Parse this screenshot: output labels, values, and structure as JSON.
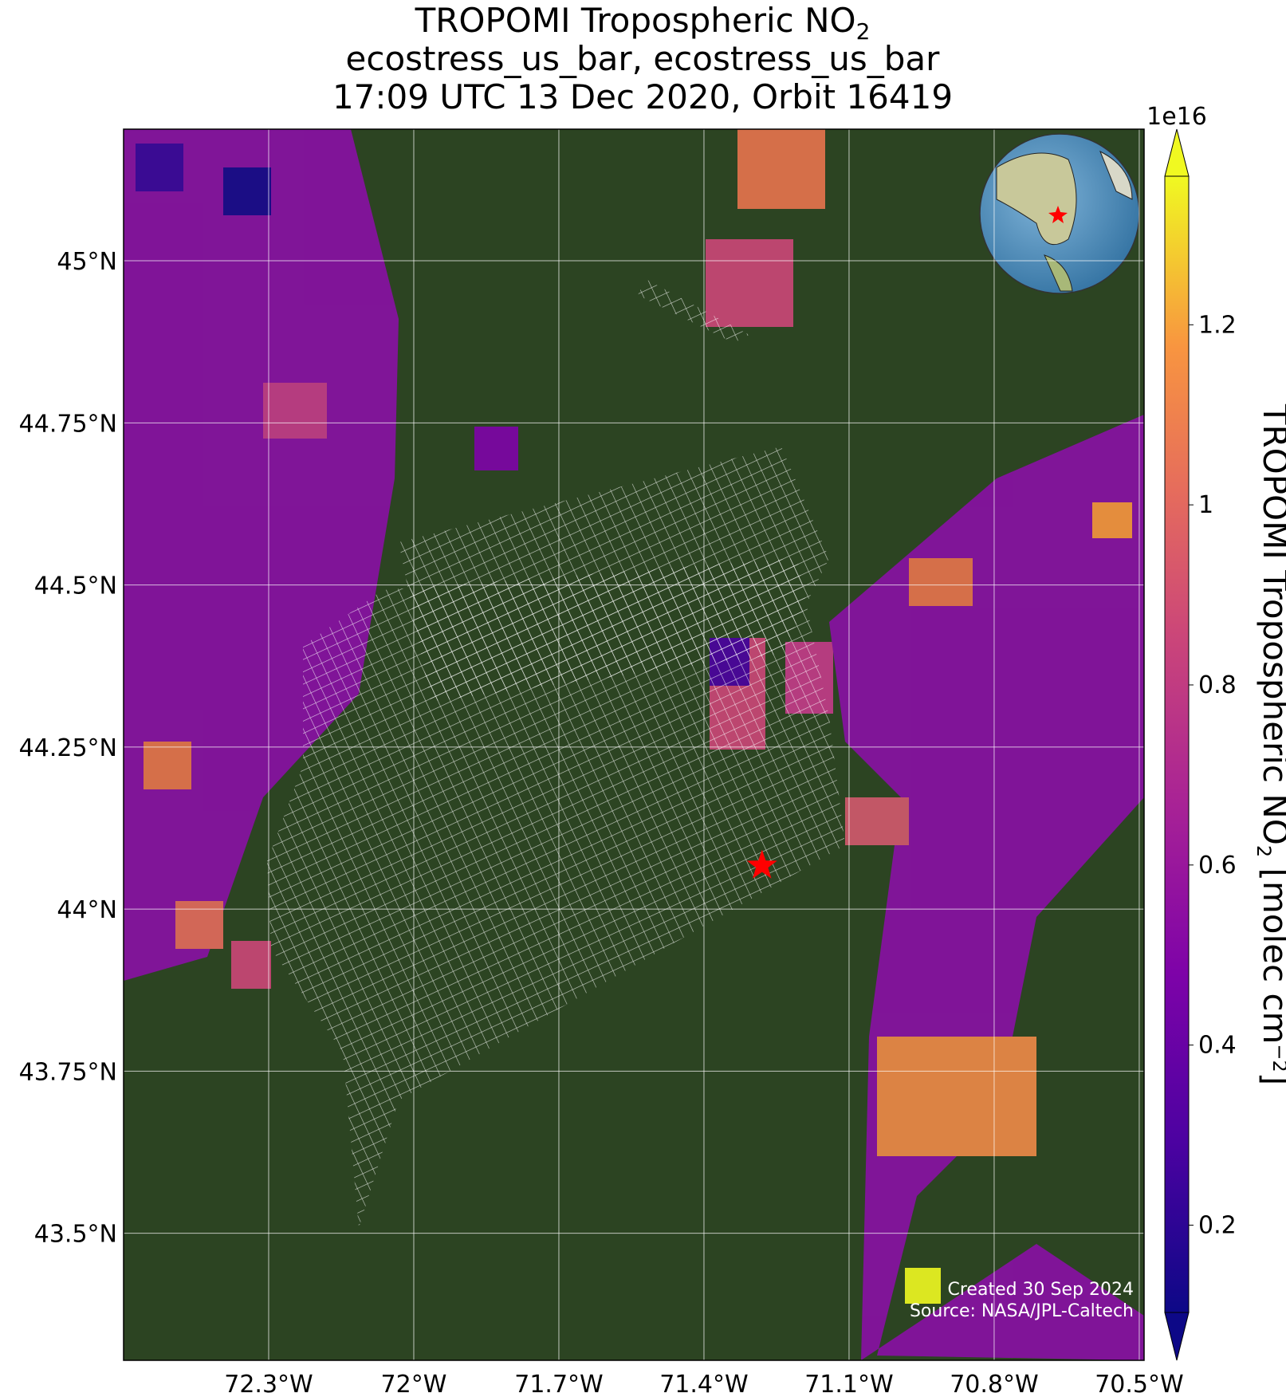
{
  "chart_data": {
    "type": "map",
    "title_lines": [
      [
        "TROPOMI Tropospheric NO",
        "2"
      ],
      [
        "ecostress_us_bar, ecostress_us_bar"
      ],
      [
        "17:09 UTC 13 Dec 2020, Orbit 16419"
      ]
    ],
    "xlim": [
      -72.6,
      -70.49
    ],
    "ylim": [
      43.304,
      45.203
    ],
    "xticks": [
      {
        "value": -72.3,
        "label": "72.3°W"
      },
      {
        "value": -72,
        "label": "72°W"
      },
      {
        "value": -71.7,
        "label": "71.7°W"
      },
      {
        "value": -71.4,
        "label": "71.4°W"
      },
      {
        "value": -71.1,
        "label": "71.1°W"
      },
      {
        "value": -70.8,
        "label": "70.8°W"
      },
      {
        "value": -70.5,
        "label": "70.5°W"
      }
    ],
    "yticks": [
      {
        "value": 45,
        "label": "45°N"
      },
      {
        "value": 44.75,
        "label": "44.75°N"
      },
      {
        "value": 44.5,
        "label": "44.5°N"
      },
      {
        "value": 44.25,
        "label": "44.25°N"
      },
      {
        "value": 44,
        "label": "44°N"
      },
      {
        "value": 43.75,
        "label": "43.75°N"
      },
      {
        "value": 43.5,
        "label": "43.5°N"
      }
    ],
    "grid": true,
    "site": {
      "lon": -71.28,
      "lat": 44.067,
      "color": "#ff0000"
    },
    "colorbar": {
      "lim": [
        0.103,
        1.365
      ],
      "ticks": [
        0.2,
        0.4,
        0.6,
        0.8,
        1.0,
        1.2
      ],
      "multiplier": "1e16",
      "label": [
        "TROPOMI Tropospheric NO",
        "2",
        " [molec cm",
        "−2",
        "]"
      ],
      "colormap": "plasma"
    },
    "credits": [
      "Created 30 Sep 2024",
      "Source: NASA/JPL-Caltech"
    ]
  }
}
